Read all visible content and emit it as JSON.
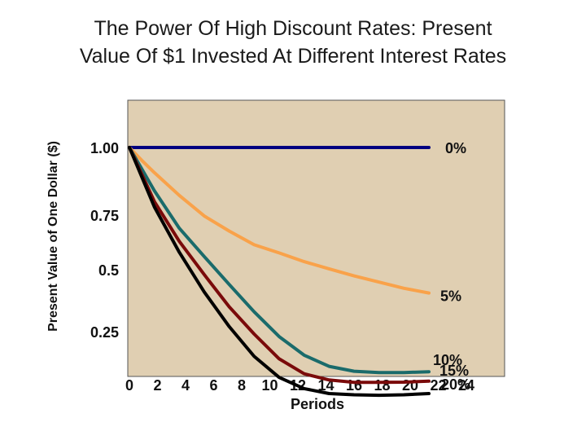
{
  "chart_data": {
    "type": "line",
    "title_lines": [
      "The Power Of High Discount Rates: Present",
      "Value Of $1 Invested At Different Interest Rates"
    ],
    "xlabel": "Periods",
    "ylabel": "Present Value of One Dollar ($)",
    "xlim": [
      0,
      24
    ],
    "xticks": [
      0,
      2,
      4,
      6,
      8,
      10,
      12,
      14,
      16,
      18,
      20,
      22,
      24
    ],
    "y_scale_points": [
      [
        1.0,
        181
      ],
      [
        0.75,
        264
      ],
      [
        0.5,
        331
      ],
      [
        0.25,
        407
      ]
    ],
    "yticks": [
      {
        "value": 1.0,
        "label": "1.00"
      },
      {
        "value": 0.75,
        "label": "0.75"
      },
      {
        "value": 0.5,
        "label": "0.5"
      },
      {
        "value": 0.25,
        "label": "0.25"
      }
    ],
    "grid": false,
    "background_color": "#e0cfb2",
    "series": [
      {
        "name": "0%",
        "color": "#000080",
        "points": [
          [
            0,
            1.0
          ],
          [
            24,
            1.0
          ]
        ]
      },
      {
        "name": "5%",
        "color": "#f9a24a",
        "points": [
          [
            0,
            1.0
          ],
          [
            1,
            0.952
          ],
          [
            2,
            0.907
          ],
          [
            4,
            0.823
          ],
          [
            6,
            0.746
          ],
          [
            8,
            0.677
          ],
          [
            10,
            0.614
          ],
          [
            12,
            0.577
          ],
          [
            14,
            0.537
          ],
          [
            16,
            0.504
          ],
          [
            18,
            0.475
          ],
          [
            20,
            0.45
          ],
          [
            22,
            0.425
          ],
          [
            24,
            0.406
          ]
        ]
      },
      {
        "name": "10%",
        "color": "#1a6b6b",
        "points": [
          [
            0,
            1.0
          ],
          [
            2,
            0.84
          ],
          [
            4,
            0.69
          ],
          [
            6,
            0.56
          ],
          [
            8,
            0.44
          ],
          [
            10,
            0.33
          ],
          [
            12,
            0.23
          ],
          [
            14,
            0.155
          ],
          [
            16,
            0.11
          ],
          [
            18,
            0.09
          ],
          [
            20,
            0.085
          ],
          [
            22,
            0.085
          ],
          [
            24,
            0.088
          ]
        ]
      },
      {
        "name": "15%",
        "color": "#7a0a0a",
        "points": [
          [
            0,
            1.0
          ],
          [
            2,
            0.8
          ],
          [
            4,
            0.63
          ],
          [
            6,
            0.48
          ],
          [
            8,
            0.35
          ],
          [
            10,
            0.24
          ],
          [
            12,
            0.14
          ],
          [
            14,
            0.08
          ],
          [
            16,
            0.055
          ],
          [
            18,
            0.045
          ],
          [
            20,
            0.045
          ],
          [
            22,
            0.046
          ],
          [
            24,
            0.05
          ]
        ]
      },
      {
        "name": "20%",
        "color": "#000000",
        "points": [
          [
            0,
            1.0
          ],
          [
            2,
            0.78
          ],
          [
            4,
            0.58
          ],
          [
            6,
            0.41
          ],
          [
            8,
            0.27
          ],
          [
            10,
            0.15
          ],
          [
            12,
            0.065
          ],
          [
            14,
            0.02
          ],
          [
            16,
            0.0
          ],
          [
            18,
            -0.005
          ],
          [
            20,
            -0.007
          ],
          [
            22,
            -0.005
          ],
          [
            24,
            0.0
          ]
        ]
      }
    ],
    "series_labels": [
      {
        "text": "0%",
        "series": "0%"
      },
      {
        "text": "5%",
        "series": "5%"
      },
      {
        "text": "10%",
        "series": "10%"
      },
      {
        "text": "15%",
        "series": "15%"
      },
      {
        "text": "20%",
        "series": "20%"
      }
    ]
  }
}
